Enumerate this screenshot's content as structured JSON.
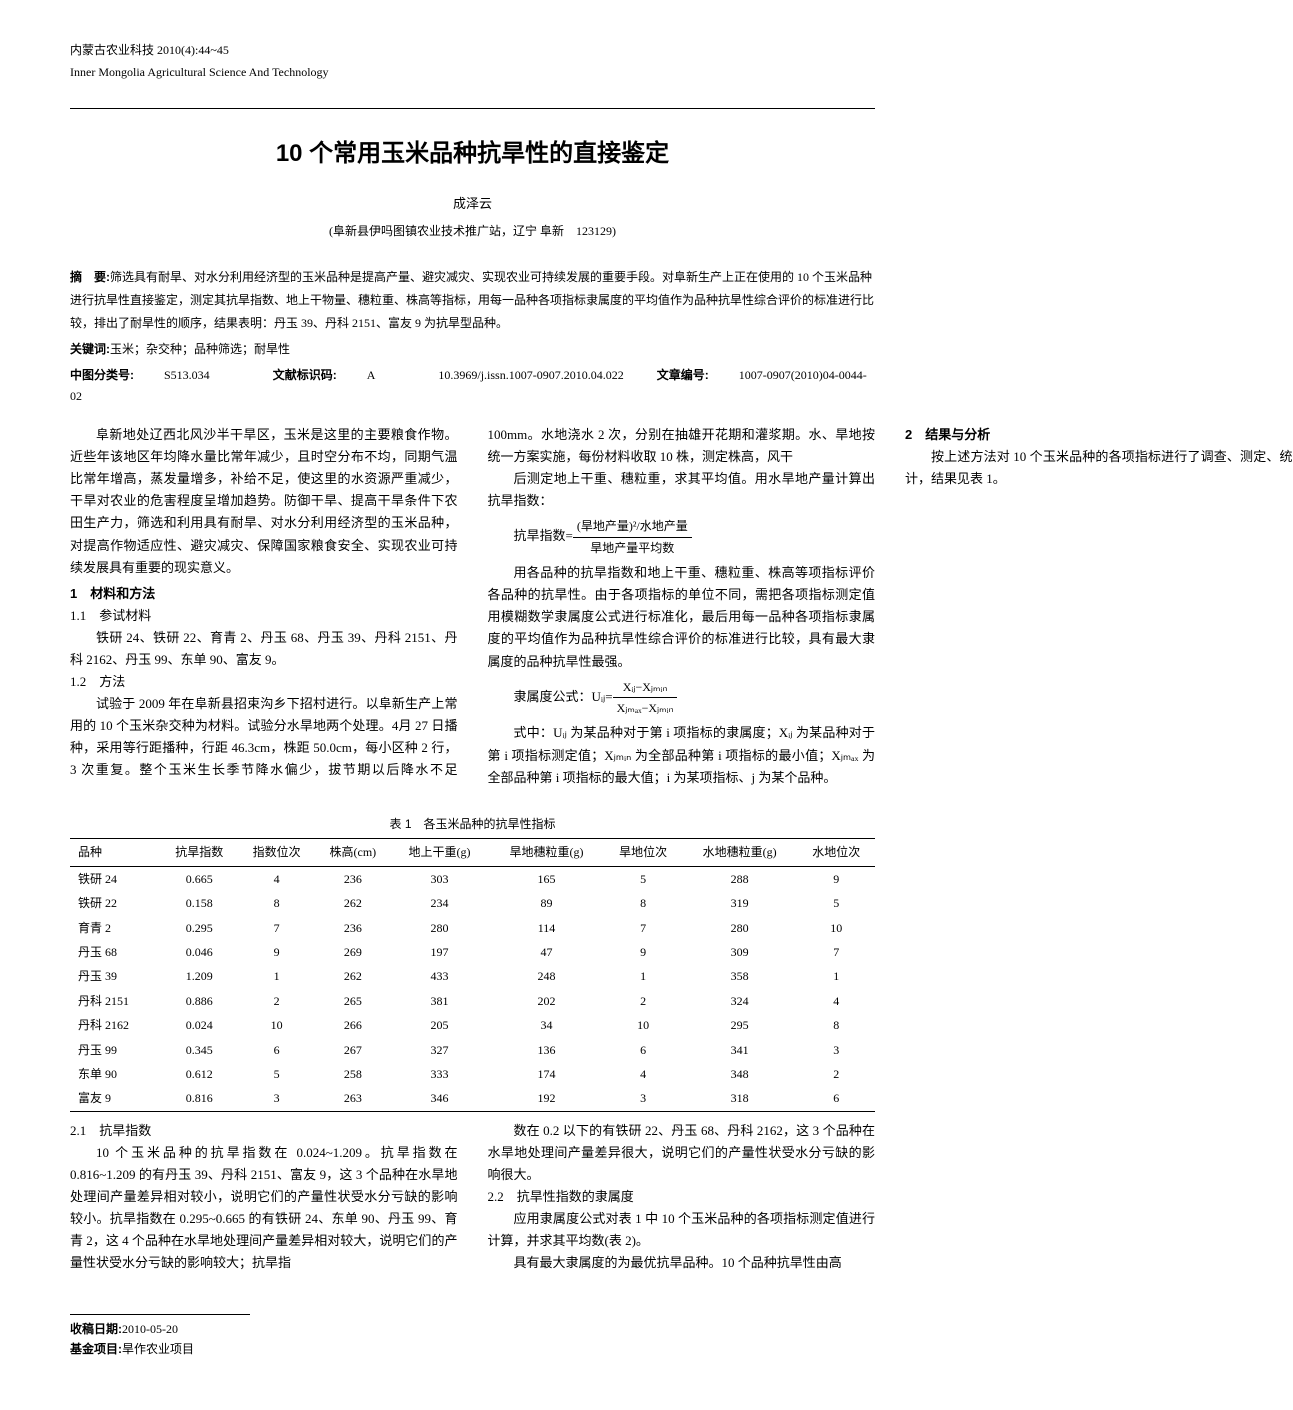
{
  "journal": {
    "cn": "内蒙古农业科技 2010(4):44~45",
    "en": "Inner Mongolia Agricultural Science And Technology"
  },
  "title": "10 个常用玉米品种抗旱性的直接鉴定",
  "author": "成泽云",
  "affiliation": "(阜新县伊吗图镇农业技术推广站，辽宁 阜新　123129)",
  "abstract_label": "摘　要:",
  "abstract_text": "筛选具有耐旱、对水分利用经济型的玉米品种是提高产量、避灾减灾、实现农业可持续发展的重要手段。对阜新生产上正在使用的 10 个玉米品种进行抗旱性直接鉴定，测定其抗旱指数、地上干物量、穗粒重、株高等指标，用每一品种各项指标隶属度的平均值作为品种抗旱性综合评价的标准进行比较，排出了耐旱性的顺序，结果表明：丹玉 39、丹科 2151、富友 9 为抗旱型品种。",
  "keywords_label": "关键词:",
  "keywords_text": "玉米；杂交种；品种筛选；耐旱性",
  "class_no_label": "中图分类号:",
  "class_no": "S513.034",
  "doc_code_label": "文献标识码:",
  "doc_code": "A",
  "doi": "10.3969/j.issn.1007-0907.2010.04.022",
  "article_no_label": "文章编号:",
  "article_no": "1007-0907(2010)04-0044-02",
  "col_left": {
    "p1": "阜新地处辽西北风沙半干旱区，玉米是这里的主要粮食作物。近些年该地区年均降水量比常年减少，且时空分布不均，同期气温比常年增高，蒸发量增多，补给不足，使这里的水资源严重减少，干旱对农业的危害程度呈增加趋势。防御干旱、提高干旱条件下农田生产力，筛选和利用具有耐旱、对水分利用经济型的玉米品种，对提高作物适应性、避灾减灾、保障国家粮食安全、实现农业可持续发展具有重要的现实意义。",
    "h1": "1　材料和方法",
    "s11": "1.1　参试材料",
    "p2": "铁研 24、铁研 22、育青 2、丹玉 68、丹玉 39、丹科 2151、丹科 2162、丹玉 99、东单 90、富友 9。",
    "s12": "1.2　方法",
    "p3": "试验于 2009 年在阜新县招束沟乡下招村进行。以阜新生产上常用的 10 个玉米杂交种为材料。试验分水旱地两个处理。4月 27 日播种，采用等行距播种，行距 46.3cm，株距 50.0cm，每小区种 2 行，3 次重复。整个玉米生长季节降水偏少，拔节期以后降水不足 100mm。水地浇水 2 次，分别在抽雄开花期和灌浆期。水、旱地按统一方案实施，每份材料收取 10 株，测定株高，风干"
  },
  "col_right": {
    "p1": "后测定地上干重、穗粒重，求其平均值。用水旱地产量计算出抗旱指数：",
    "formula1_lhs": "抗旱指数=",
    "formula1_num": "(旱地产量)²/水地产量",
    "formula1_den": "旱地产量平均数",
    "p2": "用各品种的抗旱指数和地上干重、穗粒重、株高等项指标评价各品种的抗旱性。由于各项指标的单位不同，需把各项指标测定值用模糊数学隶属度公式进行标准化，最后用每一品种各项指标隶属度的平均值作为品种抗旱性综合评价的标准进行比较，具有最大隶属度的品种抗旱性最强。",
    "formula2_label": "隶属度公式：Uᵢⱼ=",
    "formula2_num": "Xᵢⱼ−Xⱼₘᵢₙ",
    "formula2_den": "Xⱼₘₐₓ−Xⱼₘᵢₙ",
    "p3": "式中：Uᵢⱼ 为某品种对于第 i 项指标的隶属度；Xᵢⱼ 为某品种对于第 i 项指标测定值；Xⱼₘᵢₙ 为全部品种第 i 项指标的最小值；Xⱼₘₐₓ 为全部品种第 i 项指标的最大值；i 为某项指标、j 为某个品种。",
    "h2": "2　结果与分析",
    "p4": "按上述方法对 10 个玉米品种的各项指标进行了调查、测定、统计，结果见表 1。"
  },
  "table1": {
    "caption": "表 1　各玉米品种的抗旱性指标",
    "columns": [
      "品种",
      "抗旱指数",
      "指数位次",
      "株高(cm)",
      "地上干重(g)",
      "旱地穗粒重(g)",
      "旱地位次",
      "水地穗粒重(g)",
      "水地位次"
    ],
    "rows": [
      [
        "铁研 24",
        "0.665",
        "4",
        "236",
        "303",
        "165",
        "5",
        "288",
        "9"
      ],
      [
        "铁研 22",
        "0.158",
        "8",
        "262",
        "234",
        "89",
        "8",
        "319",
        "5"
      ],
      [
        "育青 2",
        "0.295",
        "7",
        "236",
        "280",
        "114",
        "7",
        "280",
        "10"
      ],
      [
        "丹玉 68",
        "0.046",
        "9",
        "269",
        "197",
        "47",
        "9",
        "309",
        "7"
      ],
      [
        "丹玉 39",
        "1.209",
        "1",
        "262",
        "433",
        "248",
        "1",
        "358",
        "1"
      ],
      [
        "丹科 2151",
        "0.886",
        "2",
        "265",
        "381",
        "202",
        "2",
        "324",
        "4"
      ],
      [
        "丹科 2162",
        "0.024",
        "10",
        "266",
        "205",
        "34",
        "10",
        "295",
        "8"
      ],
      [
        "丹玉 99",
        "0.345",
        "6",
        "267",
        "327",
        "136",
        "6",
        "341",
        "3"
      ],
      [
        "东单 90",
        "0.612",
        "5",
        "258",
        "333",
        "174",
        "4",
        "348",
        "2"
      ],
      [
        "富友 9",
        "0.816",
        "3",
        "263",
        "346",
        "192",
        "3",
        "318",
        "6"
      ]
    ]
  },
  "after_table": {
    "s21": "2.1　抗旱指数",
    "p1": "10 个玉米品种的抗旱指数在 0.024~1.209。抗旱指数在 0.816~1.209 的有丹玉 39、丹科 2151、富友 9，这 3 个品种在水旱地处理间产量差异相对较小，说明它们的产量性状受水分亏缺的影响较小。抗旱指数在 0.295~0.665 的有铁研 24、东单 90、丹玉 99、育青 2，这 4 个品种在水旱地处理间产量差异相对较大，说明它们的产量性状受水分亏缺的影响较大；抗旱指",
    "p2": "数在 0.2 以下的有铁研 22、丹玉 68、丹科 2162，这 3 个品种在水旱地处理间产量差异很大，说明它们的产量性状受水分亏缺的影响很大。",
    "s22": "2.2　抗旱性指数的隶属度",
    "p3": "应用隶属度公式对表 1 中 10 个玉米品种的各项指标测定值进行计算，并求其平均数(表 2)。",
    "p4": "具有最大隶属度的为最优抗旱品种。10 个品种抗旱性由高"
  },
  "footer": {
    "recv_label": "收稿日期:",
    "recv": "2010-05-20",
    "fund_label": "基金项目:",
    "fund": "旱作农业项目"
  }
}
